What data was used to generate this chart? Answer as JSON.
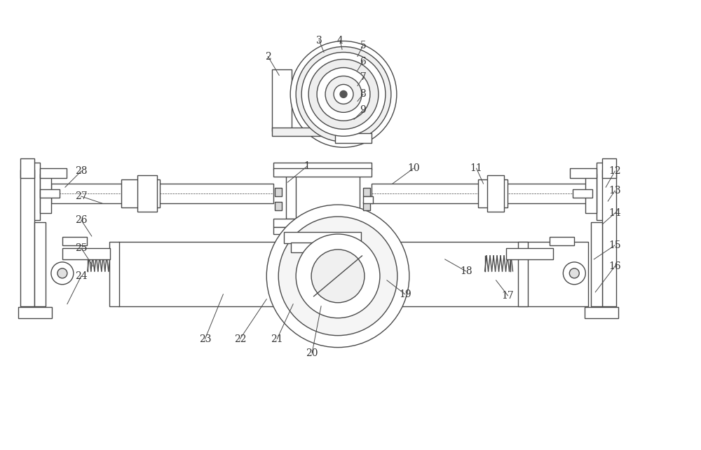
{
  "bg_color": "#ffffff",
  "line_color": "#4a4a4a",
  "lw": 1.0,
  "fig_width": 10.0,
  "fig_height": 6.42,
  "label_fs": 10,
  "label_color": "#333333",
  "label_positions": {
    "1": [
      4.38,
      4.05,
      4.1,
      3.82
    ],
    "2": [
      3.82,
      5.62,
      3.98,
      5.35
    ],
    "3": [
      4.55,
      5.85,
      4.62,
      5.68
    ],
    "4": [
      4.85,
      5.85,
      4.88,
      5.72
    ],
    "5": [
      5.18,
      5.78,
      5.1,
      5.62
    ],
    "6": [
      5.18,
      5.55,
      5.1,
      5.42
    ],
    "7": [
      5.18,
      5.32,
      5.1,
      5.2
    ],
    "8": [
      5.18,
      5.08,
      5.1,
      4.98
    ],
    "9": [
      5.18,
      4.85,
      5.05,
      4.72
    ],
    "10": [
      5.9,
      4.02,
      5.6,
      3.8
    ],
    "11": [
      6.8,
      4.02,
      6.9,
      3.8
    ],
    "12": [
      8.78,
      3.98,
      8.65,
      3.75
    ],
    "13": [
      8.78,
      3.7,
      8.68,
      3.55
    ],
    "14": [
      8.78,
      3.38,
      8.6,
      3.22
    ],
    "15": [
      8.78,
      2.92,
      8.48,
      2.72
    ],
    "16": [
      8.78,
      2.62,
      8.5,
      2.25
    ],
    "17": [
      7.25,
      2.2,
      7.08,
      2.42
    ],
    "18": [
      6.65,
      2.55,
      6.35,
      2.72
    ],
    "19": [
      5.78,
      2.22,
      5.52,
      2.42
    ],
    "20": [
      4.45,
      1.38,
      4.58,
      2.05
    ],
    "21": [
      3.95,
      1.58,
      4.18,
      2.08
    ],
    "22": [
      3.42,
      1.58,
      3.8,
      2.15
    ],
    "23": [
      2.92,
      1.58,
      3.18,
      2.22
    ],
    "24": [
      1.15,
      2.48,
      0.95,
      2.08
    ],
    "25": [
      1.15,
      2.88,
      1.32,
      2.62
    ],
    "26": [
      1.15,
      3.28,
      1.3,
      3.05
    ],
    "27": [
      1.15,
      3.62,
      1.45,
      3.52
    ],
    "28": [
      1.15,
      3.98,
      0.92,
      3.75
    ]
  }
}
